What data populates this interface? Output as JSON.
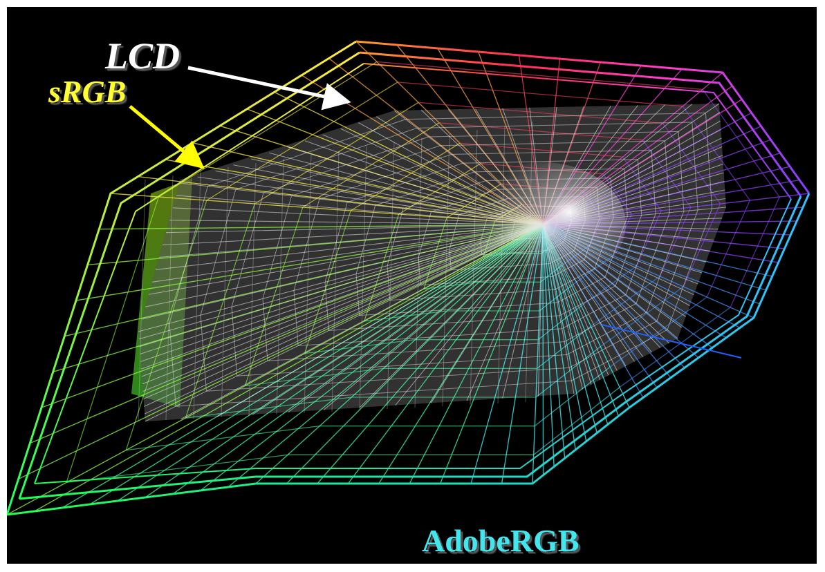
{
  "labels": {
    "lcd": "LCD",
    "srgb": "sRGB",
    "adobergb": "AdobeRGB"
  },
  "colors": {
    "background": "#000000",
    "lcd": "#ffffff",
    "srgb": "#ffff33",
    "adobergb": "#44e6ee",
    "lcd_arrow": "#ffffff",
    "srgb_arrow": "#ffff00",
    "srgb_gamut": "#d8d8d8"
  },
  "gamuts": [
    "AdobeRGB",
    "sRGB",
    "LCD"
  ]
}
